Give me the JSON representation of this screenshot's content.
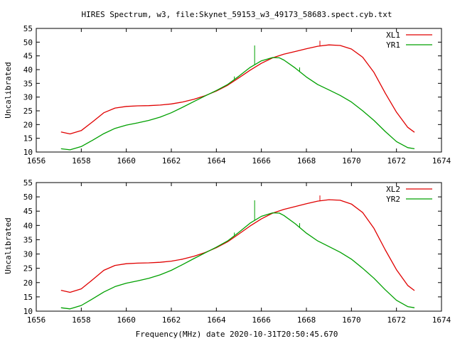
{
  "figure": {
    "title": "HIRES Spectrum, w3, file:Skynet_59153_w3_49173_58683.spect.cyb.txt",
    "xlabel": "Frequency(MHz) date 2020-10-31T20:50:45.670"
  },
  "chart_data": [
    {
      "type": "line",
      "ylabel": "Uncalibrated",
      "xlim": [
        1656,
        1674
      ],
      "ylim": [
        10,
        55
      ],
      "xticks": [
        1656,
        1658,
        1660,
        1662,
        1664,
        1666,
        1668,
        1670,
        1672,
        1674
      ],
      "yticks": [
        10,
        15,
        20,
        25,
        30,
        35,
        40,
        45,
        50,
        55
      ],
      "legend_position": "top-right",
      "series": [
        {
          "name": "XL1",
          "color": "#e00000",
          "x": [
            1657.1,
            1657.5,
            1658.0,
            1658.5,
            1659.0,
            1659.5,
            1660.0,
            1660.5,
            1661.0,
            1661.5,
            1662.0,
            1662.5,
            1663.0,
            1663.5,
            1664.0,
            1664.5,
            1665.0,
            1665.5,
            1666.0,
            1666.5,
            1667.0,
            1667.5,
            1668.0,
            1668.5,
            1669.0,
            1669.5,
            1670.0,
            1670.5,
            1671.0,
            1671.5,
            1672.0,
            1672.5,
            1672.8
          ],
          "y": [
            17.3,
            16.6,
            17.8,
            21.0,
            24.3,
            26.0,
            26.6,
            26.8,
            26.9,
            27.1,
            27.5,
            28.2,
            29.2,
            30.5,
            32.2,
            34.3,
            37.0,
            39.8,
            42.3,
            44.3,
            45.6,
            46.6,
            47.6,
            48.5,
            49.0,
            48.8,
            47.5,
            44.5,
            39.0,
            31.5,
            24.5,
            19.0,
            17.2
          ],
          "spikes": [
            {
              "x": 1668.6,
              "y": 50.5
            }
          ]
        },
        {
          "name": "YR1",
          "color": "#00a000",
          "x": [
            1657.1,
            1657.5,
            1658.0,
            1658.5,
            1659.0,
            1659.5,
            1660.0,
            1660.5,
            1661.0,
            1661.5,
            1662.0,
            1662.5,
            1663.0,
            1663.5,
            1664.0,
            1664.5,
            1665.0,
            1665.5,
            1666.0,
            1666.5,
            1666.8,
            1667.0,
            1667.5,
            1668.0,
            1668.5,
            1669.0,
            1669.5,
            1670.0,
            1670.5,
            1671.0,
            1671.5,
            1672.0,
            1672.5,
            1672.8
          ],
          "y": [
            11.2,
            10.8,
            12.0,
            14.3,
            16.7,
            18.6,
            19.8,
            20.6,
            21.5,
            22.7,
            24.3,
            26.3,
            28.4,
            30.4,
            32.4,
            34.6,
            37.6,
            40.8,
            43.2,
            44.4,
            44.3,
            43.5,
            40.6,
            37.3,
            34.6,
            32.6,
            30.6,
            28.2,
            25.0,
            21.5,
            17.5,
            13.8,
            11.6,
            11.2
          ],
          "spikes": [
            {
              "x": 1665.7,
              "y": 48.8
            },
            {
              "x": 1664.8,
              "y": 37.5
            },
            {
              "x": 1667.7,
              "y": 40.8
            }
          ]
        }
      ]
    },
    {
      "type": "line",
      "ylabel": "Uncalibrated",
      "xlim": [
        1656,
        1674
      ],
      "ylim": [
        10,
        55
      ],
      "xticks": [
        1656,
        1658,
        1660,
        1662,
        1664,
        1666,
        1668,
        1670,
        1672,
        1674
      ],
      "yticks": [
        10,
        15,
        20,
        25,
        30,
        35,
        40,
        45,
        50,
        55
      ],
      "legend_position": "top-right",
      "series": [
        {
          "name": "XL2",
          "color": "#e00000",
          "x": [
            1657.1,
            1657.5,
            1658.0,
            1658.5,
            1659.0,
            1659.5,
            1660.0,
            1660.5,
            1661.0,
            1661.5,
            1662.0,
            1662.5,
            1663.0,
            1663.5,
            1664.0,
            1664.5,
            1665.0,
            1665.5,
            1666.0,
            1666.5,
            1667.0,
            1667.5,
            1668.0,
            1668.5,
            1669.0,
            1669.5,
            1670.0,
            1670.5,
            1671.0,
            1671.5,
            1672.0,
            1672.5,
            1672.8
          ],
          "y": [
            17.3,
            16.6,
            17.8,
            21.0,
            24.3,
            26.0,
            26.6,
            26.8,
            26.9,
            27.1,
            27.5,
            28.2,
            29.2,
            30.5,
            32.2,
            34.3,
            37.0,
            39.8,
            42.3,
            44.3,
            45.6,
            46.6,
            47.6,
            48.5,
            49.0,
            48.8,
            47.5,
            44.5,
            39.0,
            31.5,
            24.5,
            19.0,
            17.2
          ],
          "spikes": [
            {
              "x": 1668.6,
              "y": 50.5
            }
          ]
        },
        {
          "name": "YR2",
          "color": "#00a000",
          "x": [
            1657.1,
            1657.5,
            1658.0,
            1658.5,
            1659.0,
            1659.5,
            1660.0,
            1660.5,
            1661.0,
            1661.5,
            1662.0,
            1662.5,
            1663.0,
            1663.5,
            1664.0,
            1664.5,
            1665.0,
            1665.5,
            1666.0,
            1666.5,
            1666.8,
            1667.0,
            1667.5,
            1668.0,
            1668.5,
            1669.0,
            1669.5,
            1670.0,
            1670.5,
            1671.0,
            1671.5,
            1672.0,
            1672.5,
            1672.8
          ],
          "y": [
            11.2,
            10.8,
            12.0,
            14.3,
            16.7,
            18.6,
            19.8,
            20.6,
            21.5,
            22.7,
            24.3,
            26.3,
            28.4,
            30.4,
            32.4,
            34.6,
            37.6,
            40.8,
            43.2,
            44.4,
            44.3,
            43.5,
            40.6,
            37.3,
            34.6,
            32.6,
            30.6,
            28.2,
            25.0,
            21.5,
            17.5,
            13.8,
            11.6,
            11.2
          ],
          "spikes": [
            {
              "x": 1665.7,
              "y": 48.8
            },
            {
              "x": 1664.8,
              "y": 37.5
            },
            {
              "x": 1667.7,
              "y": 40.8
            }
          ]
        }
      ]
    }
  ]
}
